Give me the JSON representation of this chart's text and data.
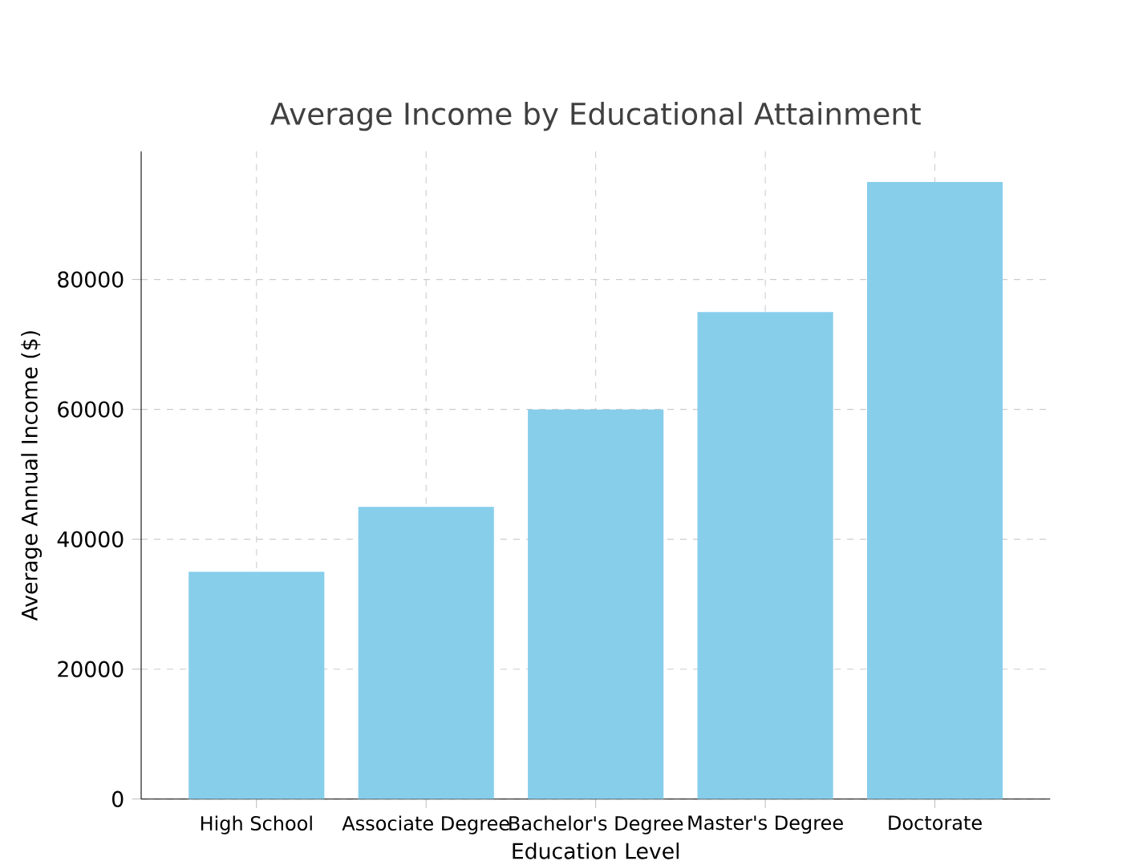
{
  "chart_data": {
    "type": "bar",
    "title": "Average Income by Educational Attainment",
    "xlabel": "Education Level",
    "ylabel": "Average Annual Income ($)",
    "categories": [
      "High School",
      "Associate Degree",
      "Bachelor's Degree",
      "Master's Degree",
      "Doctorate"
    ],
    "values": [
      35000,
      45000,
      60000,
      75000,
      95000
    ],
    "color": "#87ceeb",
    "ylim": [
      0,
      99750
    ],
    "yticks": [
      0,
      20000,
      40000,
      60000,
      80000
    ],
    "grid": true
  }
}
